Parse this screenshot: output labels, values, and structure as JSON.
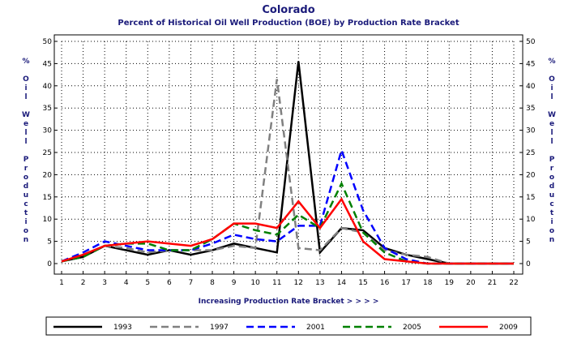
{
  "chart_data": {
    "type": "line",
    "title": "Colorado",
    "subtitle": "Percent of Historical Oil Well Production (BOE) by Production Rate Bracket",
    "xlabel": "Increasing Production Rate Bracket > > > >",
    "ylabel": "% Oil Well Production",
    "ylim": [
      0,
      50
    ],
    "xlim": [
      1,
      22
    ],
    "grid": true,
    "legend_position": "bottom",
    "x": [
      1,
      2,
      3,
      4,
      5,
      6,
      7,
      8,
      9,
      10,
      11,
      12,
      13,
      14,
      15,
      16,
      17,
      18,
      19,
      20,
      21,
      22
    ],
    "y_ticks": [
      0,
      5,
      10,
      15,
      20,
      25,
      30,
      35,
      40,
      45,
      50
    ],
    "series": [
      {
        "name": "1993",
        "color": "#000000",
        "dash": "solid",
        "values": [
          0.5,
          1.5,
          4,
          3,
          2,
          3,
          2,
          3,
          4.5,
          3.5,
          2.5,
          45.5,
          2.5,
          8,
          7.5,
          3.5,
          2,
          1,
          0,
          0,
          0,
          0
        ]
      },
      {
        "name": "1997",
        "color": "#808080",
        "dash": "dashed",
        "values": [
          0.5,
          1.5,
          4,
          3.5,
          2.5,
          3,
          3,
          3,
          4,
          3.5,
          41.5,
          3.5,
          3,
          8,
          7,
          3,
          2,
          1.5,
          0,
          0,
          0,
          0
        ]
      },
      {
        "name": "2001",
        "color": "#0000ff",
        "dash": "dashed",
        "values": [
          0.5,
          2.5,
          5,
          4,
          3,
          3,
          3,
          4.5,
          6.5,
          5.5,
          5,
          8.5,
          8.5,
          25.5,
          12,
          3.5,
          1,
          0,
          0,
          0,
          0,
          0
        ]
      },
      {
        "name": "2005",
        "color": "#008000",
        "dash": "dashed",
        "values": [
          0.5,
          1.5,
          4,
          4.5,
          4.5,
          3,
          3,
          5.5,
          9,
          7.5,
          6.5,
          11,
          8,
          18,
          7,
          2.5,
          0.5,
          0,
          0,
          0,
          0,
          0
        ]
      },
      {
        "name": "2009",
        "color": "#ff0000",
        "dash": "solid",
        "values": [
          0.5,
          2,
          4,
          4.5,
          5,
          4.5,
          4,
          5.5,
          9,
          9,
          8,
          14,
          8,
          14.5,
          5,
          1,
          0.5,
          0,
          0,
          0,
          0,
          0
        ]
      }
    ]
  }
}
